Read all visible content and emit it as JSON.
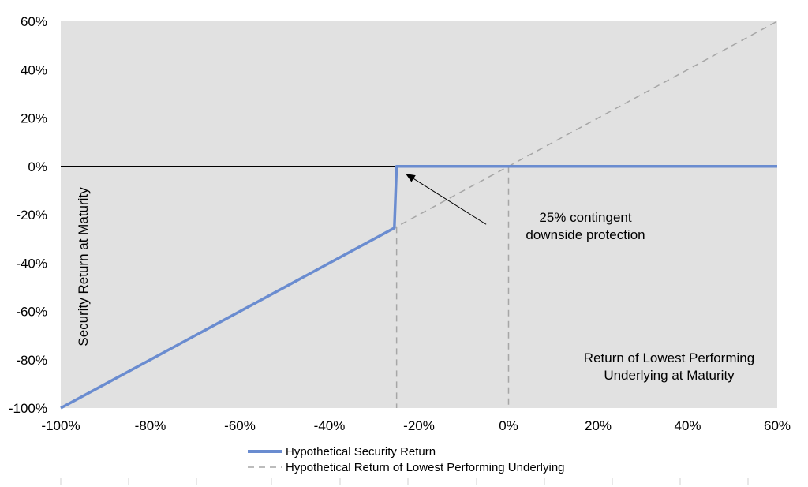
{
  "chart_data": {
    "type": "line",
    "xlim": [
      -100,
      60
    ],
    "ylim": [
      -100,
      60
    ],
    "x_ticks": [
      "-100%",
      "-80%",
      "-60%",
      "-40%",
      "-20%",
      "0%",
      "20%",
      "40%",
      "60%"
    ],
    "y_ticks": [
      "60%",
      "40%",
      "20%",
      "0%",
      "-20%",
      "-40%",
      "-60%",
      "-80%",
      "-100%"
    ],
    "ylabel": "Security Return at Maturity",
    "xlabel_lines": [
      "Return of Lowest Performing",
      "Underlying at Maturity"
    ],
    "annotation": {
      "lines": [
        "25% contingent",
        "downside protection"
      ],
      "arrow_from": [
        -5,
        -24
      ],
      "arrow_to": [
        -23,
        -3
      ]
    },
    "reference_lines": [
      {
        "axis": "x",
        "value": -25
      },
      {
        "axis": "x",
        "value": 0
      }
    ],
    "legend_position": "bottom",
    "series": [
      {
        "name": "Hypothetical Security Return",
        "style": "solid",
        "color": "#6a8cd0",
        "points": [
          [
            -100,
            -100
          ],
          [
            -25.5,
            -25.5
          ],
          [
            -25,
            0
          ],
          [
            60,
            0
          ]
        ]
      },
      {
        "name": "Hypothetical Return of Lowest Performing Underlying",
        "style": "dashed",
        "color": "#a6a6a6",
        "points": [
          [
            -100,
            -100
          ],
          [
            60,
            60
          ]
        ]
      }
    ]
  },
  "colors": {
    "plot_background": "#e1e1e1",
    "zero_line": "#000000"
  }
}
